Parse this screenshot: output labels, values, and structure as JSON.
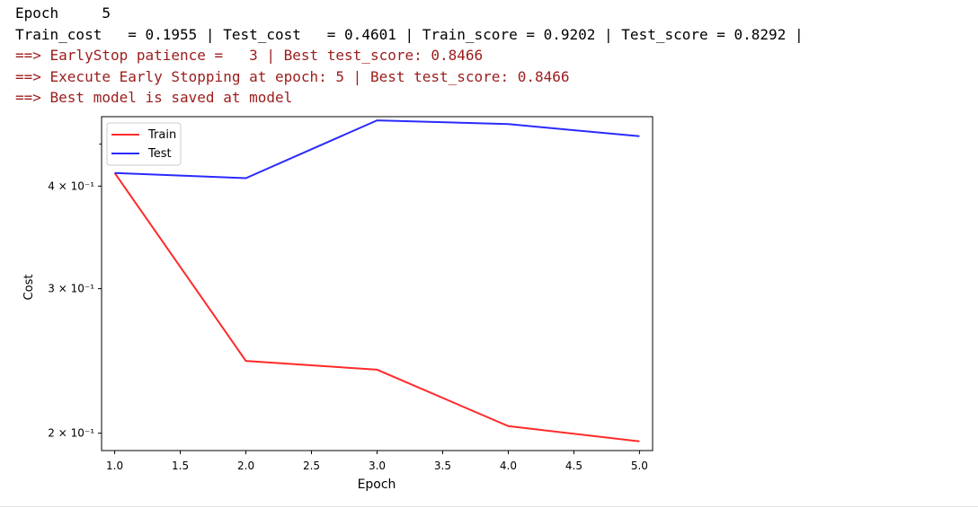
{
  "log": {
    "line1": "Epoch     5",
    "line2": "Train_cost   = 0.1955 | Test_cost   = 0.4601 | Train_score = 0.9202 | Test_score = 0.8292 |",
    "line3": "==> EarlyStop patience =   3 | Best test_score: 0.8466",
    "line4": "==> Execute Early Stopping at epoch: 5 | Best test_score: 0.8466",
    "line5": "==> Best model is saved at model"
  },
  "colors": {
    "log_highlight": "#9b1c1c",
    "train": "#ff2a2a",
    "test": "#2a2aff"
  },
  "chart_data": {
    "type": "line",
    "x": [
      1.0,
      2.0,
      3.0,
      4.0,
      5.0
    ],
    "series": [
      {
        "name": "Train",
        "color": "#ff2a2a",
        "values": [
          0.415,
          0.245,
          0.239,
          0.204,
          0.1955
        ]
      },
      {
        "name": "Test",
        "color": "#2a2aff",
        "values": [
          0.415,
          0.409,
          0.481,
          0.476,
          0.4601
        ]
      }
    ],
    "xlabel": "Epoch",
    "ylabel": "Cost",
    "xlim": [
      0.9,
      5.1
    ],
    "ylim": [
      0.1905,
      0.486
    ],
    "y_scale": "log",
    "x_ticks": [
      1.0,
      1.5,
      2.0,
      2.5,
      3.0,
      3.5,
      4.0,
      4.5,
      5.0
    ],
    "x_tick_labels": [
      "1.0",
      "1.5",
      "2.0",
      "2.5",
      "3.0",
      "3.5",
      "4.0",
      "4.5",
      "5.0"
    ],
    "y_ticks": [
      {
        "value": 0.2,
        "label": "2 × 10⁻¹"
      },
      {
        "value": 0.3,
        "label": "3 × 10⁻¹"
      },
      {
        "value": 0.4,
        "label": "4 × 10⁻¹"
      }
    ],
    "y_minor_ticks": [
      0.45
    ],
    "grid": false,
    "legend": "upper-left"
  }
}
